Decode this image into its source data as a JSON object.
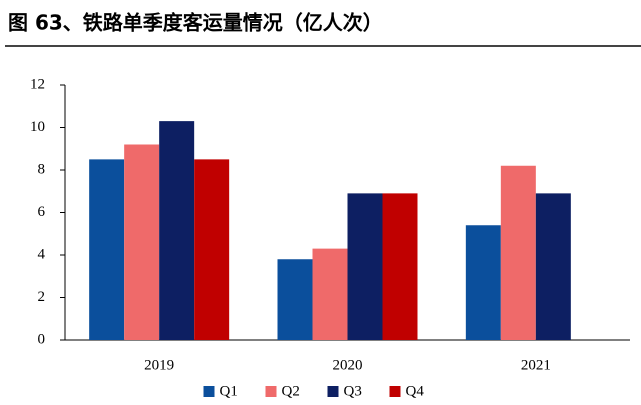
{
  "chart_data": {
    "type": "bar",
    "title": "图 63、铁路单季度客运量情况（亿人次）",
    "categories": [
      "2019",
      "2020",
      "2021"
    ],
    "series": [
      {
        "name": "Q1",
        "color": "#0b4f9c",
        "values": [
          8.5,
          3.8,
          5.4
        ]
      },
      {
        "name": "Q2",
        "color": "#ef6a6a",
        "values": [
          9.2,
          4.3,
          8.2
        ]
      },
      {
        "name": "Q3",
        "color": "#0d1f62",
        "values": [
          10.3,
          6.9,
          6.9
        ]
      },
      {
        "name": "Q4",
        "color": "#c00000",
        "values": [
          8.5,
          6.9,
          null
        ]
      }
    ],
    "ylim": [
      0,
      12
    ],
    "yticks": [
      0,
      2,
      4,
      6,
      8,
      10,
      12
    ],
    "grid": false
  }
}
